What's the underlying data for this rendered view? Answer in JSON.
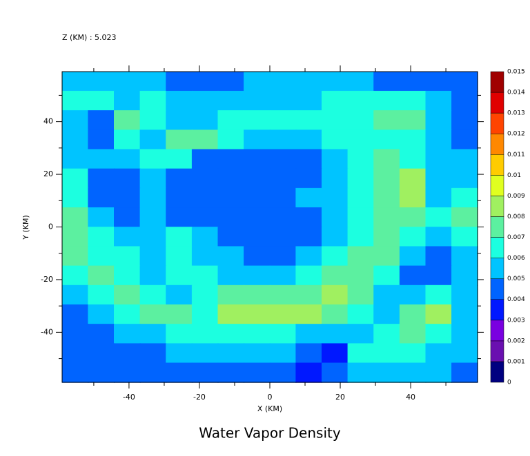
{
  "chart_data": {
    "type": "contour",
    "subtitle": "Z (KM) : 5.023",
    "title": "Water Vapor Density",
    "x_label": "X (KM)",
    "y_label": "Y (KM)",
    "xlim": [
      -59,
      59
    ],
    "ylim": [
      -59,
      59
    ],
    "xticks": [
      -40,
      -20,
      0,
      20,
      40
    ],
    "yticks": [
      -40,
      -20,
      0,
      20,
      40
    ],
    "xminorticks": [
      -50,
      -30,
      -10,
      10,
      30,
      50
    ],
    "yminorticks": [
      -50,
      -30,
      -10,
      10,
      30,
      50
    ],
    "levels": [
      0,
      0.001,
      0.002,
      0.003,
      0.004,
      0.005,
      0.006,
      0.007,
      0.008,
      0.009,
      0.01,
      0.011,
      0.012,
      0.013,
      0.014,
      0.015
    ],
    "colors": [
      "#000080",
      "#6a10b0",
      "#7a00e0",
      "#0018ff",
      "#0064ff",
      "#00c4ff",
      "#1cffe0",
      "#5cf0a0",
      "#a0f060",
      "#e0ff20",
      "#ffcc00",
      "#ff8800",
      "#ff4400",
      "#e00000",
      "#a00000"
    ],
    "z": [
      [
        0.0055,
        0.0055,
        0.0055,
        0.0055,
        0.0045,
        0.0045,
        0.0045,
        0.0055,
        0.0055,
        0.0055,
        0.0055,
        0.0055,
        0.0045,
        0.0045,
        0.0045,
        0.0045
      ],
      [
        0.0065,
        0.0065,
        0.0055,
        0.0065,
        0.0055,
        0.0055,
        0.0055,
        0.0055,
        0.0055,
        0.0055,
        0.0065,
        0.0065,
        0.0065,
        0.0065,
        0.0055,
        0.0045
      ],
      [
        0.0055,
        0.0045,
        0.0075,
        0.0065,
        0.0055,
        0.0055,
        0.0065,
        0.0065,
        0.0065,
        0.0065,
        0.0065,
        0.0065,
        0.0075,
        0.0075,
        0.0055,
        0.0045
      ],
      [
        0.0055,
        0.0045,
        0.0065,
        0.0055,
        0.0075,
        0.0075,
        0.0065,
        0.0055,
        0.0055,
        0.0055,
        0.0065,
        0.0065,
        0.0065,
        0.0065,
        0.0055,
        0.0045
      ],
      [
        0.0055,
        0.0055,
        0.0055,
        0.0065,
        0.0065,
        0.0045,
        0.0045,
        0.0045,
        0.0045,
        0.0045,
        0.0055,
        0.0065,
        0.0075,
        0.0065,
        0.0055,
        0.0055
      ],
      [
        0.0065,
        0.0045,
        0.0045,
        0.0055,
        0.0045,
        0.0045,
        0.0045,
        0.0045,
        0.0045,
        0.0045,
        0.0055,
        0.0065,
        0.0075,
        0.0085,
        0.0055,
        0.0055
      ],
      [
        0.0065,
        0.0045,
        0.0045,
        0.0055,
        0.0045,
        0.0045,
        0.0045,
        0.0045,
        0.0045,
        0.0055,
        0.0055,
        0.0065,
        0.0075,
        0.0085,
        0.0055,
        0.0065
      ],
      [
        0.0075,
        0.0055,
        0.0045,
        0.0055,
        0.0045,
        0.0045,
        0.0045,
        0.0045,
        0.0045,
        0.0045,
        0.0055,
        0.0065,
        0.0075,
        0.0075,
        0.0065,
        0.0075
      ],
      [
        0.0075,
        0.0065,
        0.0055,
        0.0055,
        0.0065,
        0.0055,
        0.0045,
        0.0045,
        0.0045,
        0.0045,
        0.0055,
        0.0065,
        0.0075,
        0.0065,
        0.0055,
        0.0065
      ],
      [
        0.0075,
        0.0065,
        0.0065,
        0.0055,
        0.0065,
        0.0055,
        0.0055,
        0.0045,
        0.0045,
        0.0055,
        0.0065,
        0.0075,
        0.0075,
        0.0055,
        0.0045,
        0.0055
      ],
      [
        0.0065,
        0.0075,
        0.0065,
        0.0055,
        0.0065,
        0.0065,
        0.0055,
        0.0055,
        0.0055,
        0.0065,
        0.0075,
        0.0075,
        0.0065,
        0.0045,
        0.0045,
        0.0055
      ],
      [
        0.0055,
        0.0065,
        0.0075,
        0.0065,
        0.0055,
        0.0065,
        0.0075,
        0.0075,
        0.0075,
        0.0075,
        0.0085,
        0.0075,
        0.0055,
        0.0055,
        0.0065,
        0.0055
      ],
      [
        0.0045,
        0.0055,
        0.0065,
        0.0075,
        0.0075,
        0.0065,
        0.0085,
        0.0085,
        0.0085,
        0.0085,
        0.0075,
        0.0065,
        0.0055,
        0.0075,
        0.0085,
        0.0055
      ],
      [
        0.0045,
        0.0045,
        0.0055,
        0.0055,
        0.0065,
        0.0065,
        0.0065,
        0.0065,
        0.0065,
        0.0055,
        0.0055,
        0.0055,
        0.0065,
        0.0075,
        0.0065,
        0.0055
      ],
      [
        0.0045,
        0.0045,
        0.0045,
        0.0045,
        0.0055,
        0.0055,
        0.0055,
        0.0055,
        0.0055,
        0.0045,
        0.0035,
        0.0065,
        0.0065,
        0.0065,
        0.0055,
        0.0055
      ],
      [
        0.0045,
        0.0045,
        0.0045,
        0.0045,
        0.0045,
        0.0045,
        0.0045,
        0.0045,
        0.0045,
        0.0035,
        0.0045,
        0.0055,
        0.0055,
        0.0055,
        0.0055,
        0.0045
      ]
    ]
  }
}
